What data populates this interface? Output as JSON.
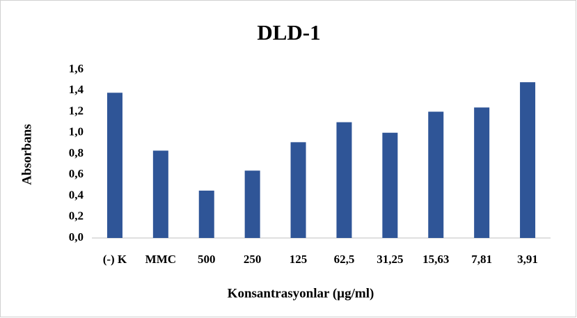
{
  "chart_data": {
    "type": "bar",
    "title": "DLD-1",
    "y_label": "Absorbans",
    "x_label": "Konsantrasyonlar (µg/ml)",
    "categories": [
      "(-) K",
      "MMC",
      "500",
      "250",
      "125",
      "62,5",
      "31,25",
      "15,63",
      "7,81",
      "3,91"
    ],
    "values": [
      1.38,
      0.83,
      0.45,
      0.64,
      0.91,
      1.1,
      1.0,
      1.2,
      1.24,
      1.48
    ],
    "color": "#2f5597",
    "ylim": [
      0,
      1.6
    ],
    "yticks": [
      {
        "value": 0,
        "label": "0,0"
      },
      {
        "value": 0.2,
        "label": "0,2"
      },
      {
        "value": 0.4,
        "label": "0,4"
      },
      {
        "value": 0.6,
        "label": "0,6"
      },
      {
        "value": 0.8,
        "label": "0,8"
      },
      {
        "value": 1.0,
        "label": "1,0"
      },
      {
        "value": 1.2,
        "label": "1,2"
      },
      {
        "value": 1.4,
        "label": "1,4"
      },
      {
        "value": 1.6,
        "label": "1,6"
      }
    ],
    "grid": false
  }
}
